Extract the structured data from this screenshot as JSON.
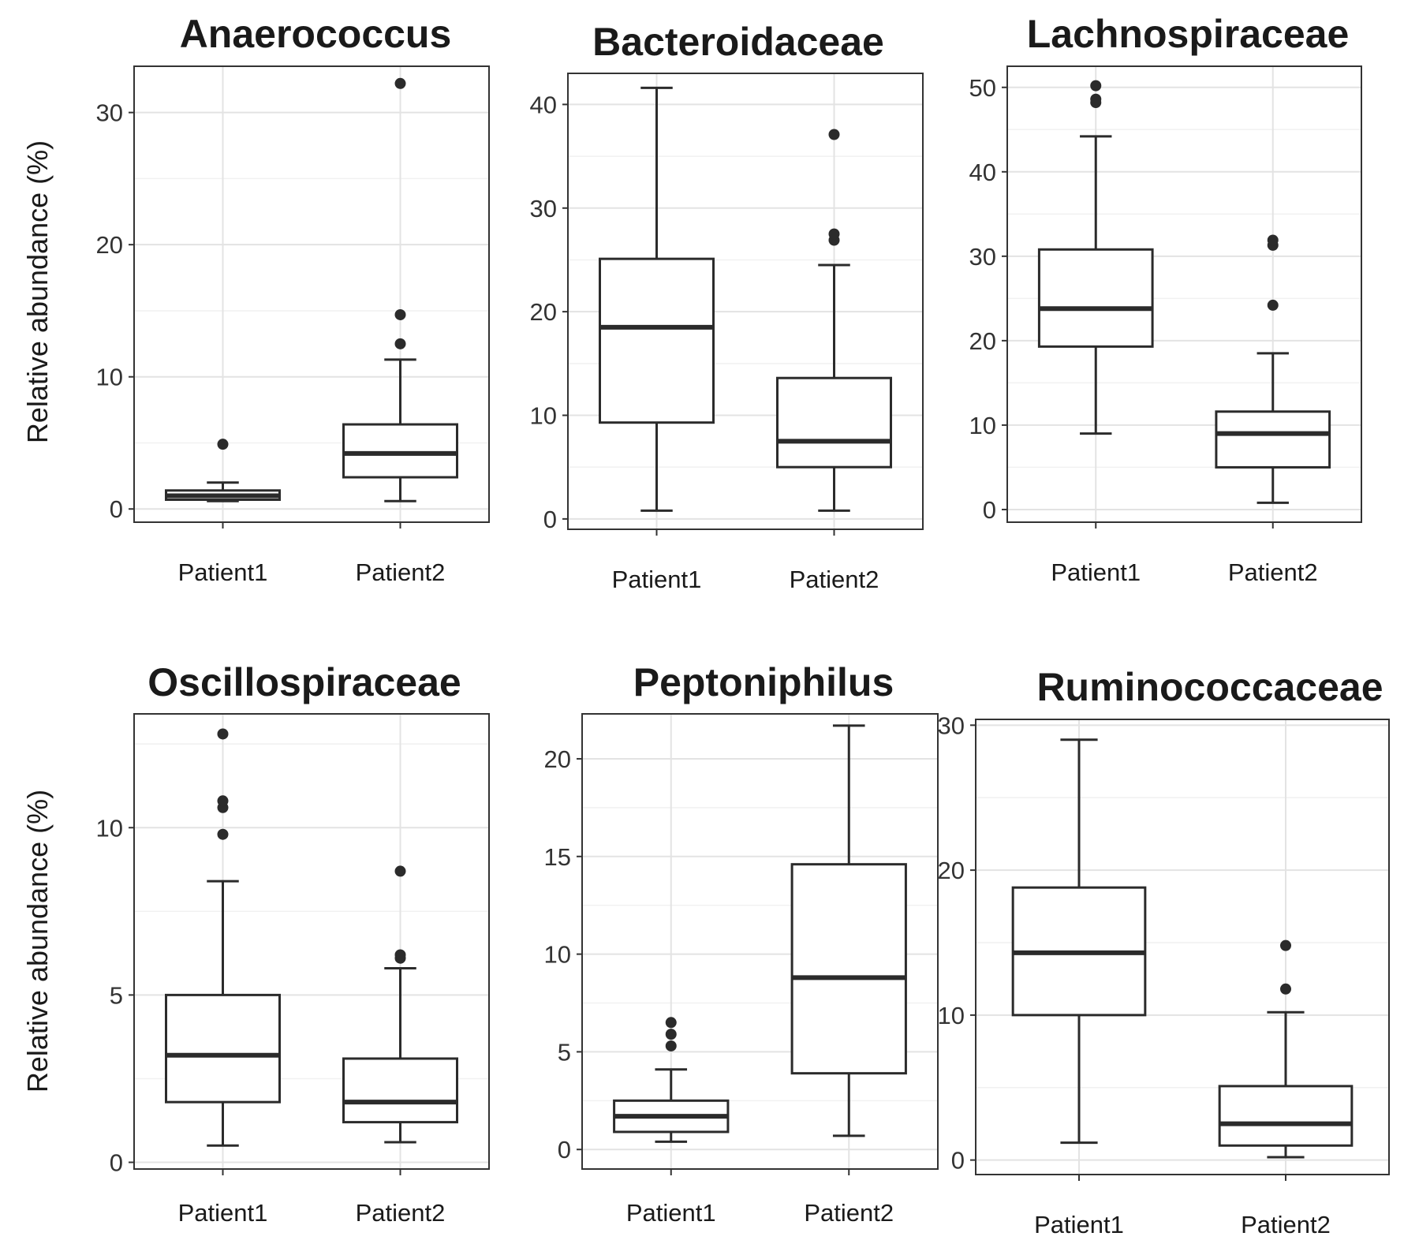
{
  "y_axis_label": "Relative abundance (%)",
  "chart_data": [
    {
      "type": "boxplot",
      "title": "Anaerococcus",
      "ylabel": "Relative abundance (%)",
      "categories": [
        "Patient1",
        "Patient2"
      ],
      "ylim": [
        -1,
        33.5
      ],
      "yticks": [
        0,
        10,
        20,
        30
      ],
      "boxes": [
        {
          "category": "Patient1",
          "whisker_low": 0.6,
          "q1": 0.7,
          "median": 1.0,
          "q3": 1.4,
          "whisker_high": 2.0,
          "outliers": [
            4.9
          ]
        },
        {
          "category": "Patient2",
          "whisker_low": 0.6,
          "q1": 2.4,
          "median": 4.2,
          "q3": 6.4,
          "whisker_high": 11.3,
          "outliers": [
            12.5,
            14.7,
            32.2
          ]
        }
      ]
    },
    {
      "type": "boxplot",
      "title": "Bacteroidaceae",
      "ylabel": "",
      "categories": [
        "Patient1",
        "Patient2"
      ],
      "ylim": [
        -1,
        43
      ],
      "yticks": [
        0,
        10,
        20,
        30,
        40
      ],
      "boxes": [
        {
          "category": "Patient1",
          "whisker_low": 0.8,
          "q1": 9.3,
          "median": 18.5,
          "q3": 25.1,
          "whisker_high": 41.6,
          "outliers": []
        },
        {
          "category": "Patient2",
          "whisker_low": 0.8,
          "q1": 5.0,
          "median": 7.5,
          "q3": 13.6,
          "whisker_high": 24.5,
          "outliers": [
            26.9,
            27.5,
            37.1
          ]
        }
      ]
    },
    {
      "type": "boxplot",
      "title": "Lachnospiraceae",
      "ylabel": "",
      "categories": [
        "Patient1",
        "Patient2"
      ],
      "ylim": [
        -1.5,
        52.5
      ],
      "yticks": [
        0,
        10,
        20,
        30,
        40,
        50
      ],
      "boxes": [
        {
          "category": "Patient1",
          "whisker_low": 9.0,
          "q1": 19.3,
          "median": 23.8,
          "q3": 30.8,
          "whisker_high": 44.2,
          "outliers": [
            48.2,
            48.6,
            50.2
          ]
        },
        {
          "category": "Patient2",
          "whisker_low": 0.8,
          "q1": 5.0,
          "median": 9.0,
          "q3": 11.6,
          "whisker_high": 18.5,
          "outliers": [
            24.2,
            31.3,
            31.9
          ]
        }
      ]
    },
    {
      "type": "boxplot",
      "title": "Oscillospiraceae",
      "ylabel": "Relative abundance (%)",
      "categories": [
        "Patient1",
        "Patient2"
      ],
      "ylim": [
        -0.2,
        13.4
      ],
      "yticks": [
        0,
        5,
        10
      ],
      "boxes": [
        {
          "category": "Patient1",
          "whisker_low": 0.5,
          "q1": 1.8,
          "median": 3.2,
          "q3": 5.0,
          "whisker_high": 8.4,
          "outliers": [
            9.8,
            10.6,
            10.8,
            12.8
          ]
        },
        {
          "category": "Patient2",
          "whisker_low": 0.6,
          "q1": 1.2,
          "median": 1.8,
          "q3": 3.1,
          "whisker_high": 5.8,
          "outliers": [
            6.1,
            6.2,
            8.7
          ]
        }
      ]
    },
    {
      "type": "boxplot",
      "title": "Peptoniphilus",
      "ylabel": "",
      "categories": [
        "Patient1",
        "Patient2"
      ],
      "ylim": [
        -1,
        22.3
      ],
      "yticks": [
        0,
        5,
        10,
        15,
        20
      ],
      "boxes": [
        {
          "category": "Patient1",
          "whisker_low": 0.4,
          "q1": 0.9,
          "median": 1.7,
          "q3": 2.5,
          "whisker_high": 4.1,
          "outliers": [
            5.3,
            5.9,
            6.5
          ]
        },
        {
          "category": "Patient2",
          "whisker_low": 0.7,
          "q1": 3.9,
          "median": 8.8,
          "q3": 14.6,
          "whisker_high": 21.7,
          "outliers": []
        }
      ]
    },
    {
      "type": "boxplot",
      "title": "Ruminococcaceae",
      "ylabel": "",
      "categories": [
        "Patient1",
        "Patient2"
      ],
      "ylim": [
        -1,
        30.4
      ],
      "yticks": [
        0,
        10,
        20,
        30
      ],
      "boxes": [
        {
          "category": "Patient1",
          "whisker_low": 1.2,
          "q1": 10.0,
          "median": 14.3,
          "q3": 18.8,
          "whisker_high": 29.0,
          "outliers": []
        },
        {
          "category": "Patient2",
          "whisker_low": 0.2,
          "q1": 1.0,
          "median": 2.5,
          "q3": 5.1,
          "whisker_high": 10.2,
          "outliers": [
            11.8,
            14.8
          ]
        }
      ]
    }
  ]
}
